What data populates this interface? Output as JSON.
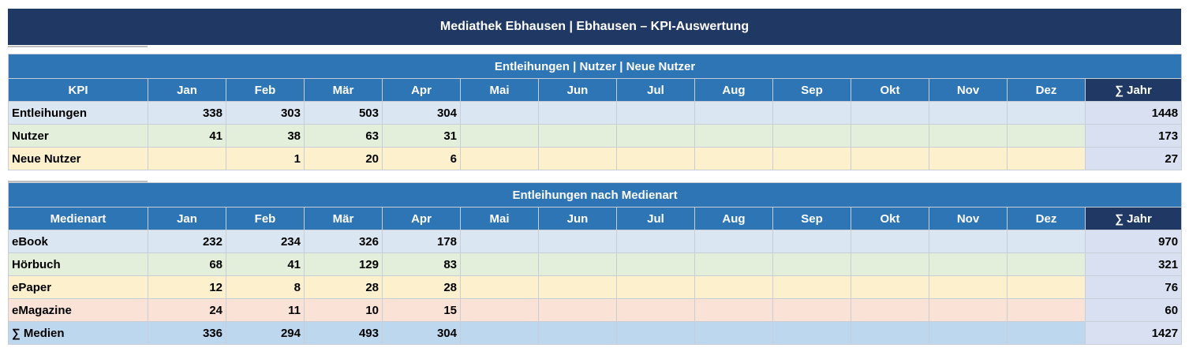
{
  "title": "Mediathek Ebhausen  |  Ebhausen  –  KPI-Auswertung",
  "months": [
    "Jan",
    "Feb",
    "Mär",
    "Apr",
    "Mai",
    "Jun",
    "Jul",
    "Aug",
    "Sep",
    "Okt",
    "Nov",
    "Dez"
  ],
  "year_label": "∑ Jahr",
  "table1": {
    "section_title": "Entleihungen | Nutzer | Neue Nutzer",
    "first_col": "KPI",
    "rows": [
      {
        "label": "Entleihungen",
        "values": [
          "338",
          "303",
          "503",
          "304",
          "",
          "",
          "",
          "",
          "",
          "",
          "",
          ""
        ],
        "total": "1448"
      },
      {
        "label": "Nutzer",
        "values": [
          "41",
          "38",
          "63",
          "31",
          "",
          "",
          "",
          "",
          "",
          "",
          "",
          ""
        ],
        "total": "173"
      },
      {
        "label": "Neue Nutzer",
        "values": [
          "",
          "1",
          "20",
          "6",
          "",
          "",
          "",
          "",
          "",
          "",
          "",
          ""
        ],
        "total": "27"
      }
    ]
  },
  "table2": {
    "section_title": "Entleihungen nach Medienart",
    "first_col": "Medienart",
    "rows": [
      {
        "label": "eBook",
        "values": [
          "232",
          "234",
          "326",
          "178",
          "",
          "",
          "",
          "",
          "",
          "",
          "",
          ""
        ],
        "total": "970"
      },
      {
        "label": "Hörbuch",
        "values": [
          "68",
          "41",
          "129",
          "83",
          "",
          "",
          "",
          "",
          "",
          "",
          "",
          ""
        ],
        "total": "321"
      },
      {
        "label": "ePaper",
        "values": [
          "12",
          "8",
          "28",
          "28",
          "",
          "",
          "",
          "",
          "",
          "",
          "",
          ""
        ],
        "total": "76"
      },
      {
        "label": "eMagazine",
        "values": [
          "24",
          "11",
          "10",
          "15",
          "",
          "",
          "",
          "",
          "",
          "",
          "",
          ""
        ],
        "total": "60"
      },
      {
        "label": "∑ Medien",
        "values": [
          "336",
          "294",
          "493",
          "304",
          "",
          "",
          "",
          "",
          "",
          "",
          "",
          ""
        ],
        "total": "1427"
      }
    ]
  },
  "colors": {
    "title_bg": "#1f3864",
    "header_bg": "#2e75b6",
    "row_blue": "#dae6f1",
    "row_green": "#e3efda",
    "row_yellow": "#fdf0cc",
    "row_pink": "#fbe2d6",
    "row_total": "#bdd7ee"
  }
}
